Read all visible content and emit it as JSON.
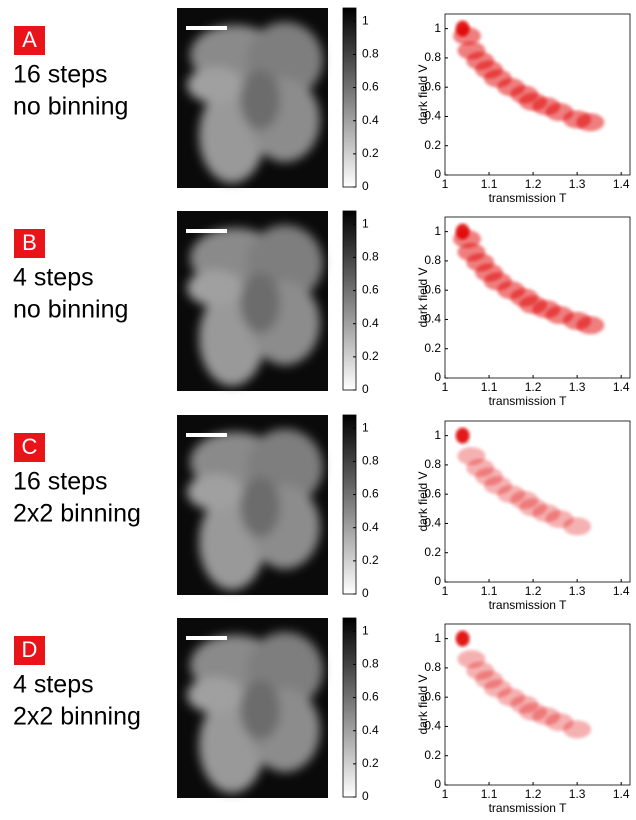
{
  "panels": [
    {
      "letter": "A",
      "lines": [
        "16 steps",
        "no binning"
      ],
      "colorbar": {
        "lim": [
          0,
          1.08
        ],
        "ticks": [
          0,
          0.2,
          0.4,
          0.6,
          0.8,
          1
        ]
      }
    },
    {
      "letter": "B",
      "lines": [
        "4 steps",
        "no binning"
      ],
      "colorbar": {
        "lim": [
          0,
          1.08
        ],
        "ticks": [
          0,
          0.2,
          0.4,
          0.6,
          0.8,
          1
        ]
      }
    },
    {
      "letter": "C",
      "lines": [
        "16 steps",
        "2x2 binning"
      ],
      "colorbar": {
        "lim": [
          0,
          1.08
        ],
        "ticks": [
          0,
          0.2,
          0.4,
          0.6,
          0.8,
          1
        ]
      }
    },
    {
      "letter": "D",
      "lines": [
        "4 steps",
        "2x2 binning"
      ],
      "colorbar": {
        "lim": [
          0,
          1.08
        ],
        "ticks": [
          0,
          0.2,
          0.4,
          0.6,
          0.8,
          1
        ]
      }
    }
  ],
  "chart_data": [
    {
      "type": "scatter",
      "xlabel": "transmission T",
      "ylabel": "dark field V",
      "xlim": [
        1,
        1.42
      ],
      "ylim": [
        0,
        1.1
      ],
      "xticks": [
        1,
        1.1,
        1.2,
        1.3,
        1.4
      ],
      "yticks": [
        0,
        0.2,
        0.4,
        0.6,
        0.8,
        1
      ],
      "color": "#e00000",
      "x": [
        1.04,
        1.05,
        1.06,
        1.08,
        1.1,
        1.12,
        1.15,
        1.18,
        1.2,
        1.23,
        1.26,
        1.3,
        1.33
      ],
      "y": [
        1.0,
        0.95,
        0.85,
        0.78,
        0.72,
        0.66,
        0.6,
        0.55,
        0.5,
        0.47,
        0.43,
        0.38,
        0.36
      ]
    },
    {
      "type": "scatter",
      "xlabel": "transmission T",
      "ylabel": "dark field V",
      "xlim": [
        1,
        1.42
      ],
      "ylim": [
        0,
        1.1
      ],
      "xticks": [
        1,
        1.1,
        1.2,
        1.3,
        1.4
      ],
      "yticks": [
        0,
        0.2,
        0.4,
        0.6,
        0.8,
        1
      ],
      "color": "#e00000",
      "x": [
        1.04,
        1.05,
        1.06,
        1.08,
        1.1,
        1.12,
        1.15,
        1.18,
        1.2,
        1.23,
        1.26,
        1.3,
        1.33
      ],
      "y": [
        1.0,
        0.95,
        0.86,
        0.79,
        0.72,
        0.66,
        0.6,
        0.55,
        0.5,
        0.47,
        0.43,
        0.39,
        0.36
      ]
    },
    {
      "type": "scatter",
      "xlabel": "transmission T",
      "ylabel": "dark field V",
      "xlim": [
        1,
        1.42
      ],
      "ylim": [
        0,
        1.1
      ],
      "xticks": [
        1,
        1.1,
        1.2,
        1.3,
        1.4
      ],
      "yticks": [
        0,
        0.2,
        0.4,
        0.6,
        0.8,
        1
      ],
      "color": "#e00000",
      "x": [
        1.04,
        1.06,
        1.08,
        1.1,
        1.12,
        1.15,
        1.18,
        1.2,
        1.23,
        1.26,
        1.3
      ],
      "y": [
        1.0,
        0.86,
        0.78,
        0.72,
        0.66,
        0.6,
        0.56,
        0.51,
        0.47,
        0.43,
        0.38
      ]
    },
    {
      "type": "scatter",
      "xlabel": "transmission T",
      "ylabel": "dark field V",
      "xlim": [
        1,
        1.42
      ],
      "ylim": [
        0,
        1.1
      ],
      "xticks": [
        1,
        1.1,
        1.2,
        1.3,
        1.4
      ],
      "yticks": [
        0,
        0.2,
        0.4,
        0.6,
        0.8,
        1
      ],
      "color": "#e00000",
      "x": [
        1.04,
        1.06,
        1.08,
        1.1,
        1.12,
        1.15,
        1.18,
        1.2,
        1.23,
        1.26,
        1.3
      ],
      "y": [
        1.0,
        0.86,
        0.78,
        0.72,
        0.66,
        0.6,
        0.55,
        0.5,
        0.47,
        0.43,
        0.38
      ]
    }
  ]
}
